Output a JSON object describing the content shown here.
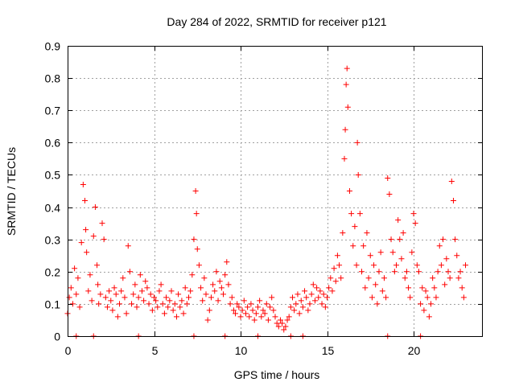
{
  "colors": {
    "background": "#ffffff",
    "series": "#ff0000",
    "grid": "#a0a0a0",
    "axis": "#000000"
  },
  "chart_data": {
    "type": "scatter",
    "title": "Day 284 of 2022, SRMTID for receiver p121",
    "xlabel": "GPS time / hours",
    "ylabel": "SRMTID / TECUs",
    "xlim": [
      0,
      24
    ],
    "ylim": [
      0,
      0.9
    ],
    "xticks": [
      0,
      5,
      10,
      15,
      20
    ],
    "xtick_labels": [
      "0",
      "5",
      "10",
      "15",
      "20"
    ],
    "yticks": [
      0,
      0.1,
      0.2,
      0.3,
      0.4,
      0.5,
      0.6,
      0.7,
      0.8,
      0.9
    ],
    "ytick_labels": [
      "0",
      "0.1",
      "0.2",
      "0.3",
      "0.4",
      "0.5",
      "0.6",
      "0.7",
      "0.8",
      "0.9"
    ],
    "grid": true,
    "marker": "+",
    "series": [
      {
        "name": "p121",
        "x": [
          0.0,
          0.1,
          0.2,
          0.3,
          0.4,
          0.5,
          0.6,
          0.7,
          0.8,
          0.9,
          1.0,
          1.05,
          1.1,
          1.2,
          1.3,
          1.4,
          1.5,
          1.6,
          1.7,
          1.75,
          1.8,
          1.9,
          2.0,
          2.1,
          2.2,
          2.3,
          2.4,
          2.5,
          2.6,
          2.7,
          2.8,
          2.9,
          3.0,
          3.1,
          3.2,
          3.3,
          3.4,
          3.5,
          3.6,
          3.7,
          3.8,
          3.9,
          4.0,
          4.1,
          4.2,
          4.3,
          4.4,
          4.5,
          4.6,
          4.7,
          4.8,
          4.9,
          5.0,
          5.1,
          5.2,
          5.3,
          5.4,
          5.5,
          5.6,
          5.7,
          5.8,
          5.9,
          6.0,
          6.1,
          6.2,
          6.3,
          6.4,
          6.5,
          6.6,
          6.7,
          6.8,
          6.9,
          7.0,
          7.1,
          7.2,
          7.3,
          7.4,
          7.45,
          7.5,
          7.6,
          7.7,
          7.8,
          7.9,
          8.0,
          8.1,
          8.2,
          8.3,
          8.4,
          8.5,
          8.6,
          8.7,
          8.8,
          8.9,
          9.0,
          9.1,
          9.2,
          9.3,
          9.4,
          9.5,
          9.6,
          9.7,
          9.8,
          9.9,
          10.0,
          10.1,
          10.2,
          10.3,
          10.4,
          10.5,
          10.6,
          10.7,
          10.8,
          10.9,
          11.0,
          11.1,
          11.2,
          11.3,
          11.4,
          11.5,
          11.6,
          11.7,
          11.8,
          11.9,
          12.0,
          12.1,
          12.2,
          12.3,
          12.4,
          12.5,
          12.6,
          12.7,
          12.8,
          12.9,
          13.0,
          13.1,
          13.2,
          13.3,
          13.4,
          13.5,
          13.6,
          13.7,
          13.8,
          13.9,
          14.0,
          14.1,
          14.2,
          14.3,
          14.4,
          14.5,
          14.6,
          14.7,
          14.8,
          14.9,
          15.0,
          15.1,
          15.2,
          15.3,
          15.4,
          15.5,
          15.6,
          15.7,
          15.8,
          15.9,
          16.0,
          16.05,
          16.1,
          16.15,
          16.2,
          16.3,
          16.4,
          16.5,
          16.6,
          16.7,
          16.75,
          16.8,
          16.9,
          17.0,
          17.1,
          17.2,
          17.3,
          17.4,
          17.5,
          17.6,
          17.7,
          17.8,
          17.9,
          18.0,
          18.1,
          18.2,
          18.3,
          18.4,
          18.5,
          18.6,
          18.7,
          18.8,
          18.9,
          19.0,
          19.1,
          19.2,
          19.3,
          19.4,
          19.5,
          19.6,
          19.7,
          19.8,
          19.9,
          20.0,
          20.1,
          20.2,
          20.3,
          20.4,
          20.5,
          20.6,
          20.7,
          20.8,
          20.9,
          21.0,
          21.1,
          21.2,
          21.3,
          21.4,
          21.5,
          21.6,
          21.7,
          21.8,
          21.9,
          22.0,
          22.1,
          22.2,
          22.3,
          22.4,
          22.5,
          22.6,
          22.7,
          22.8,
          22.9,
          23.0,
          0.5,
          1.5,
          4.1,
          7.3,
          9.1,
          11.0,
          12.9,
          13.6,
          18.5,
          20.4
        ],
        "y": [
          0.07,
          0.12,
          0.15,
          0.1,
          0.21,
          0.13,
          0.18,
          0.09,
          0.29,
          0.47,
          0.42,
          0.33,
          0.26,
          0.14,
          0.19,
          0.11,
          0.31,
          0.4,
          0.22,
          0.16,
          0.1,
          0.13,
          0.35,
          0.3,
          0.12,
          0.09,
          0.14,
          0.11,
          0.08,
          0.15,
          0.13,
          0.06,
          0.1,
          0.14,
          0.18,
          0.12,
          0.07,
          0.28,
          0.2,
          0.1,
          0.13,
          0.16,
          0.09,
          0.12,
          0.19,
          0.14,
          0.11,
          0.17,
          0.15,
          0.1,
          0.13,
          0.08,
          0.12,
          0.11,
          0.09,
          0.14,
          0.16,
          0.1,
          0.07,
          0.12,
          0.09,
          0.11,
          0.14,
          0.08,
          0.1,
          0.06,
          0.13,
          0.09,
          0.11,
          0.07,
          0.15,
          0.1,
          0.12,
          0.14,
          0.19,
          0.3,
          0.45,
          0.38,
          0.27,
          0.22,
          0.15,
          0.11,
          0.18,
          0.13,
          0.05,
          0.08,
          0.12,
          0.16,
          0.14,
          0.2,
          0.11,
          0.17,
          0.15,
          0.13,
          0.19,
          0.23,
          0.16,
          0.1,
          0.12,
          0.08,
          0.07,
          0.1,
          0.09,
          0.06,
          0.08,
          0.11,
          0.07,
          0.09,
          0.06,
          0.1,
          0.08,
          0.05,
          0.07,
          0.09,
          0.11,
          0.06,
          0.08,
          0.07,
          0.1,
          0.05,
          0.09,
          0.12,
          0.08,
          0.06,
          0.04,
          0.03,
          0.05,
          0.04,
          0.02,
          0.03,
          0.05,
          0.06,
          0.09,
          0.12,
          0.08,
          0.1,
          0.13,
          0.07,
          0.11,
          0.09,
          0.14,
          0.12,
          0.08,
          0.1,
          0.13,
          0.16,
          0.11,
          0.15,
          0.12,
          0.14,
          0.1,
          0.13,
          0.09,
          0.12,
          0.15,
          0.18,
          0.14,
          0.21,
          0.17,
          0.25,
          0.22,
          0.18,
          0.32,
          0.55,
          0.64,
          0.78,
          0.83,
          0.71,
          0.45,
          0.38,
          0.28,
          0.34,
          0.22,
          0.6,
          0.5,
          0.38,
          0.2,
          0.28,
          0.15,
          0.32,
          0.18,
          0.25,
          0.12,
          0.22,
          0.16,
          0.1,
          0.2,
          0.26,
          0.14,
          0.18,
          0.12,
          0.49,
          0.44,
          0.3,
          0.26,
          0.2,
          0.22,
          0.36,
          0.3,
          0.24,
          0.32,
          0.18,
          0.2,
          0.15,
          0.12,
          0.26,
          0.38,
          0.35,
          0.22,
          0.2,
          0.1,
          0.15,
          0.08,
          0.14,
          0.12,
          0.06,
          0.1,
          0.18,
          0.15,
          0.12,
          0.2,
          0.28,
          0.22,
          0.3,
          0.16,
          0.24,
          0.2,
          0.18,
          0.48,
          0.42,
          0.3,
          0.25,
          0.18,
          0.2,
          0.15,
          0.12,
          0.22,
          0.0,
          0.0,
          0.0,
          0.0,
          0.0,
          0.0,
          0.0,
          0.0,
          0.0,
          0.0
        ]
      }
    ]
  }
}
